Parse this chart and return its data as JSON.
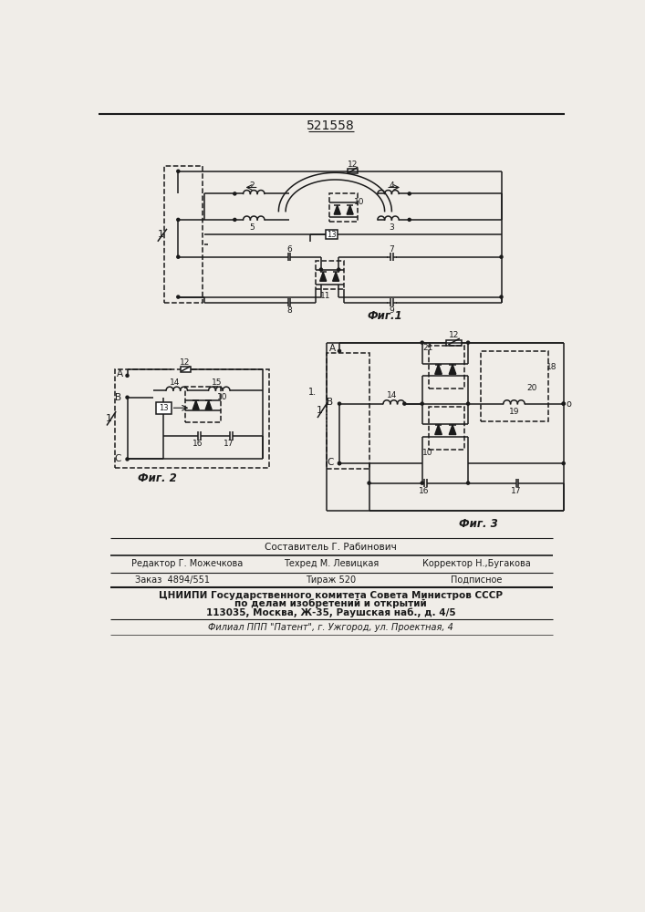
{
  "title": "521558",
  "bg_color": "#f0ede8",
  "line_color": "#1a1a1a",
  "fig1_label": "Фиг.1",
  "fig2_label": "Фиг. 2",
  "fig3_label": "Фиг. 3",
  "footer_line0": "Составитель Г. Рабинович",
  "footer_line1_l": "Редактор Г. Можечкова",
  "footer_line1_m": "Техред М. Левицкая",
  "footer_line1_r": "Корректор Н.,Бугакова",
  "footer_line2_l": "Заказ  4894/551",
  "footer_line2_m": "Тираж 520",
  "footer_line2_r": "Подписное",
  "footer_line3": "ЦНИИПИ Государственного комитета Совета Министров СССР",
  "footer_line4": "по делам изобретений и открытий",
  "footer_line5": "113035, Москва, Ж-35, Раушская наб., д. 4/5",
  "footer_line6": "Филиал ППП \"Патент\", г. Ужгород, ул. Проектная, 4"
}
